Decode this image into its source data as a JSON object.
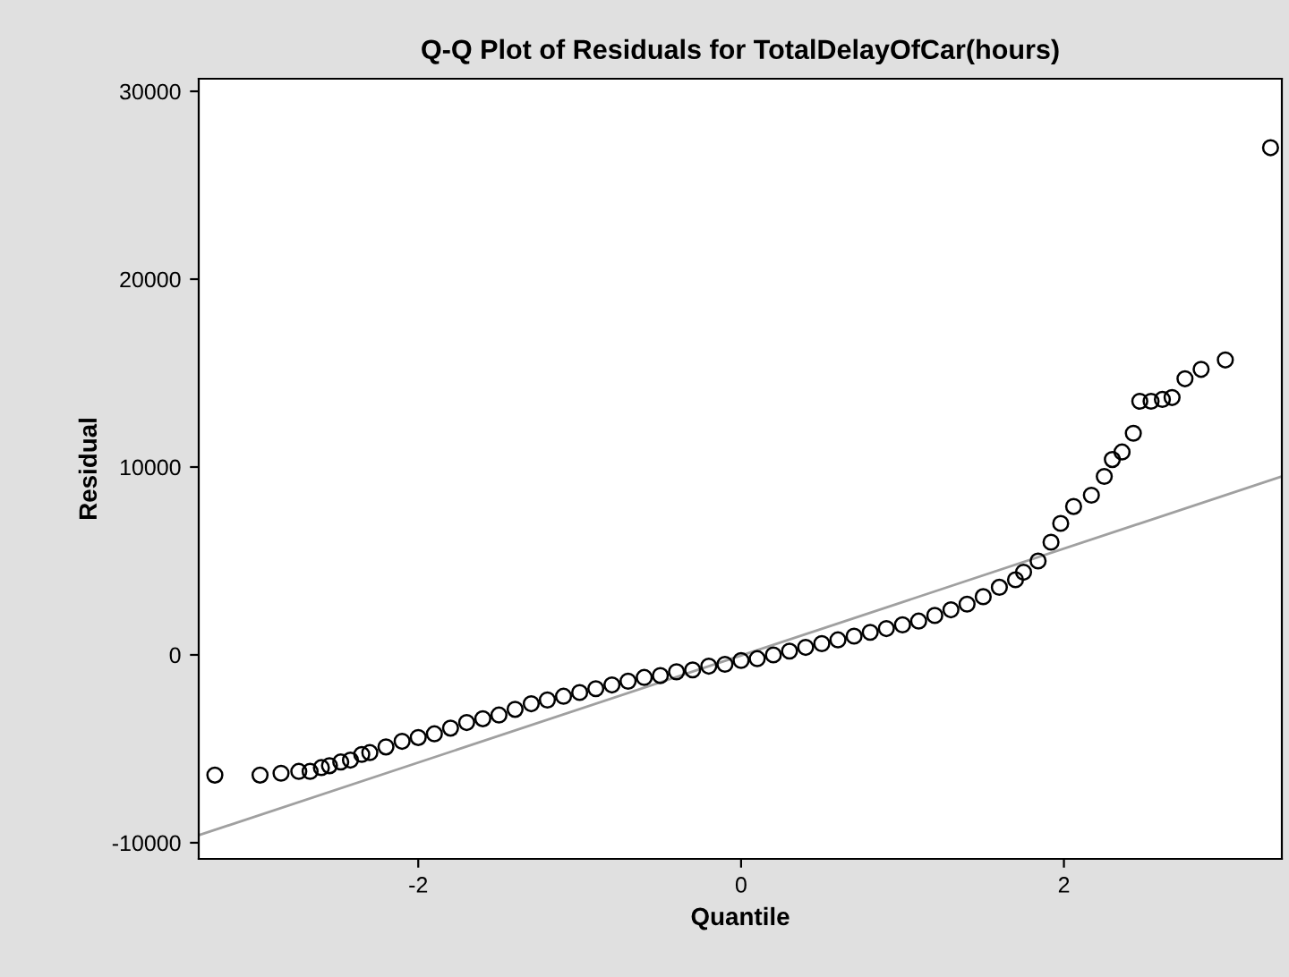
{
  "chart_data": {
    "type": "scatter",
    "title": "Q-Q Plot of Residuals for TotalDelayOfCar(hours)",
    "xlabel": "Quantile",
    "ylabel": "Residual",
    "xlim": [
      -3.36,
      3.35
    ],
    "ylim": [
      -10860,
      30670
    ],
    "xticks": [
      -2,
      0,
      2
    ],
    "yticks": [
      -10000,
      0,
      10000,
      20000,
      30000
    ],
    "grid": false,
    "series": [
      {
        "marker": "circle",
        "color": "#000000",
        "x": [
          -3.26,
          -2.98,
          -2.85,
          -2.74,
          -2.67,
          -2.6,
          -2.55,
          -2.48,
          -2.42,
          -2.35,
          -2.3,
          -2.2,
          -2.1,
          -2.0,
          -1.9,
          -1.8,
          -1.7,
          -1.6,
          -1.5,
          -1.4,
          -1.3,
          -1.2,
          -1.1,
          -1.0,
          -0.9,
          -0.8,
          -0.7,
          -0.6,
          -0.5,
          -0.4,
          -0.3,
          -0.2,
          -0.1,
          0.0,
          0.1,
          0.2,
          0.3,
          0.4,
          0.5,
          0.6,
          0.7,
          0.8,
          0.9,
          1.0,
          1.1,
          1.2,
          1.3,
          1.4,
          1.5,
          1.6,
          1.7,
          1.75,
          1.84,
          1.92,
          1.98,
          2.06,
          2.17,
          2.25,
          2.3,
          2.36,
          2.43,
          2.47,
          2.54,
          2.61,
          2.67,
          2.75,
          2.85,
          3.0,
          3.28
        ],
        "values": [
          -6400,
          -6400,
          -6300,
          -6200,
          -6200,
          -6000,
          -5900,
          -5700,
          -5600,
          -5300,
          -5200,
          -4900,
          -4600,
          -4400,
          -4200,
          -3900,
          -3600,
          -3400,
          -3200,
          -2900,
          -2600,
          -2400,
          -2200,
          -2000,
          -1800,
          -1600,
          -1400,
          -1200,
          -1100,
          -900,
          -800,
          -600,
          -500,
          -300,
          -200,
          0,
          200,
          400,
          600,
          800,
          1000,
          1200,
          1400,
          1600,
          1800,
          2100,
          2400,
          2700,
          3100,
          3600,
          4000,
          4400,
          5000,
          6000,
          7000,
          7900,
          8500,
          9500,
          10400,
          10800,
          11800,
          13500,
          13500,
          13600,
          13700,
          14700,
          15200,
          15700,
          27000
        ]
      },
      {
        "type": "line",
        "color": "#a0a0a0",
        "x": [
          -3.36,
          3.35
        ],
        "values": [
          -9600,
          9500
        ]
      }
    ]
  }
}
